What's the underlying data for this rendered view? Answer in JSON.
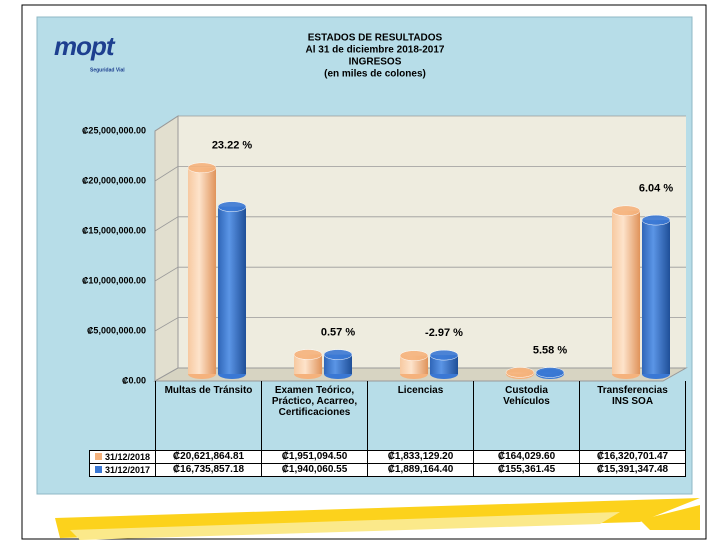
{
  "logo": {
    "text": "mopt",
    "tagline": "Seguridad Vial"
  },
  "chart_data": {
    "type": "bar3d",
    "title_lines": [
      "ESTADOS DE RESULTADOS",
      "Al 31 de diciembre 2018-2017",
      "INGRESOS",
      "(en miles de colones)"
    ],
    "categories": [
      "Multas de Tránsito",
      "Examen Teórico, Práctico, Acarreo, Certificaciones",
      "Licencias",
      "Custodia Vehículos",
      "Transferencias INS SOA"
    ],
    "series": [
      {
        "name": "31/12/2018",
        "color": "#f5b27c",
        "values": [
          20621864.81,
          1951094.5,
          1833129.2,
          164029.6,
          16320701.47
        ],
        "value_labels": [
          "₡20,621,864.81",
          "₡1,951,094.50",
          "₡1,833,129.20",
          "₡164,029.60",
          "₡16,320,701.47"
        ]
      },
      {
        "name": "31/12/2017",
        "color": "#3a78d4",
        "values": [
          16735857.18,
          1940060.55,
          1889164.4,
          155361.45,
          15391347.48
        ],
        "value_labels": [
          "₡16,735,857.18",
          "₡1,940,060.55",
          "₡1,889,164.40",
          "₡155,361.45",
          "₡15,391,347.48"
        ]
      }
    ],
    "annotations": [
      "23.22 %",
      "0.57 %",
      "-2.97 %",
      "5.58 %",
      "6.04 %"
    ],
    "ylim": [
      0,
      25000000
    ],
    "yticks": [
      {
        "value": 0,
        "label": "₡0.00"
      },
      {
        "value": 5000000,
        "label": "₡5,000,000.00"
      },
      {
        "value": 10000000,
        "label": "₡10,000,000.00"
      },
      {
        "value": 15000000,
        "label": "₡15,000,000.00"
      },
      {
        "value": 20000000,
        "label": "₡20,000,000.00"
      },
      {
        "value": 25000000,
        "label": "₡25,000,000.00"
      }
    ],
    "grid": true
  }
}
